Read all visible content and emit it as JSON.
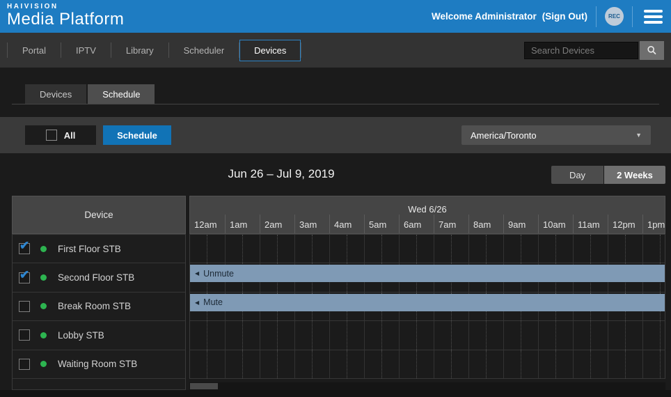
{
  "header": {
    "logo_top": "HAIVISION",
    "logo_bottom": "Media Platform",
    "welcome": "Welcome Administrator",
    "sign_out": "(Sign Out)",
    "rec_badge": "REC",
    "header_blue": "#1e7cc2"
  },
  "navbar": {
    "items": [
      {
        "label": "Portal",
        "active": false
      },
      {
        "label": "IPTV",
        "active": false
      },
      {
        "label": "Library",
        "active": false
      },
      {
        "label": "Scheduler",
        "active": false
      },
      {
        "label": "Devices",
        "active": true
      }
    ],
    "search_placeholder": "Search Devices"
  },
  "tabs": {
    "devices": "Devices",
    "schedule": "Schedule"
  },
  "toolbar": {
    "all_label": "All",
    "schedule_button": "Schedule",
    "timezone": "America/Toronto"
  },
  "date_bar": {
    "range": "Jun 26 – Jul 9, 2019",
    "day_button": "Day",
    "weeks_button": "2 Weeks"
  },
  "table": {
    "device_header": "Device",
    "day_label": "Wed 6/26",
    "hours": [
      "12am",
      "1am",
      "2am",
      "3am",
      "4am",
      "5am",
      "6am",
      "7am",
      "8am",
      "9am",
      "10am",
      "11am",
      "12pm",
      "1pm"
    ],
    "status_color": "#2db450",
    "event_color": "#7f9ab5",
    "event_text_color": "#1d2a36",
    "rows": [
      {
        "name": "First Floor STB",
        "checked": true,
        "event": null
      },
      {
        "name": "Second Floor STB",
        "checked": true,
        "event": {
          "label": "Unmute",
          "continues_left": true
        }
      },
      {
        "name": "Break Room STB",
        "checked": false,
        "event": {
          "label": "Mute",
          "continues_left": true
        }
      },
      {
        "name": "Lobby STB",
        "checked": false,
        "event": null
      },
      {
        "name": "Waiting Room STB",
        "checked": false,
        "event": null
      }
    ]
  }
}
